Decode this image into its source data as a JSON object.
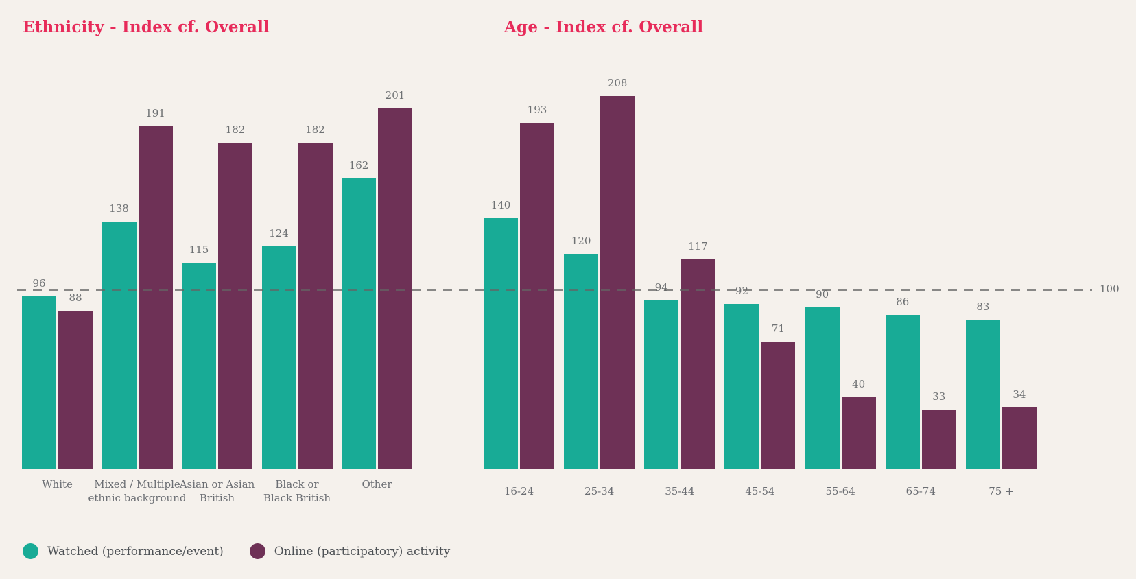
{
  "page": {
    "background": "#f5f1ec"
  },
  "colors": {
    "series_watched": "#18ab96",
    "series_online": "#6e3156",
    "title": "#e72b5a",
    "value_label": "#6e7173",
    "category_label": "#6b6e73",
    "reference_line": "#646464"
  },
  "reference_line": {
    "value": 100,
    "label": "100"
  },
  "legend": {
    "items": [
      {
        "key": "watched",
        "label": "Watched (performance/event)",
        "color": "#18ab96"
      },
      {
        "key": "online",
        "label": "Online (participatory) activity",
        "color": "#6e3156"
      }
    ]
  },
  "chart_data": [
    {
      "type": "bar",
      "title": "Ethnicity - Index cf. Overall",
      "categories": [
        "White",
        "Mixed / Multiple\nethnic background",
        "Asian or Asian\nBritish",
        "Black or\nBlack British",
        "Other"
      ],
      "series": [
        {
          "name": "Watched (performance/event)",
          "color": "#18ab96",
          "values": [
            96,
            138,
            115,
            124,
            162
          ]
        },
        {
          "name": "Online (participatory) activity",
          "color": "#6e3156",
          "values": [
            88,
            191,
            182,
            182,
            201
          ]
        }
      ],
      "reference_line": 100,
      "ylim": [
        0,
        215
      ],
      "grid": false,
      "legend_position": "bottom-left",
      "value_labels": true
    },
    {
      "type": "bar",
      "title": "Age - Index cf. Overall",
      "categories": [
        "16-24",
        "25-34",
        "35-44",
        "45-54",
        "55-64",
        "65-74",
        "75 +"
      ],
      "series": [
        {
          "name": "Watched (performance/event)",
          "color": "#18ab96",
          "values": [
            140,
            120,
            94,
            92,
            90,
            86,
            83
          ]
        },
        {
          "name": "Online (participatory) activity",
          "color": "#6e3156",
          "values": [
            193,
            208,
            117,
            71,
            40,
            33,
            34
          ]
        }
      ],
      "reference_line": 100,
      "ylim": [
        0,
        215
      ],
      "grid": false,
      "legend_position": "bottom-left",
      "value_labels": true
    }
  ]
}
